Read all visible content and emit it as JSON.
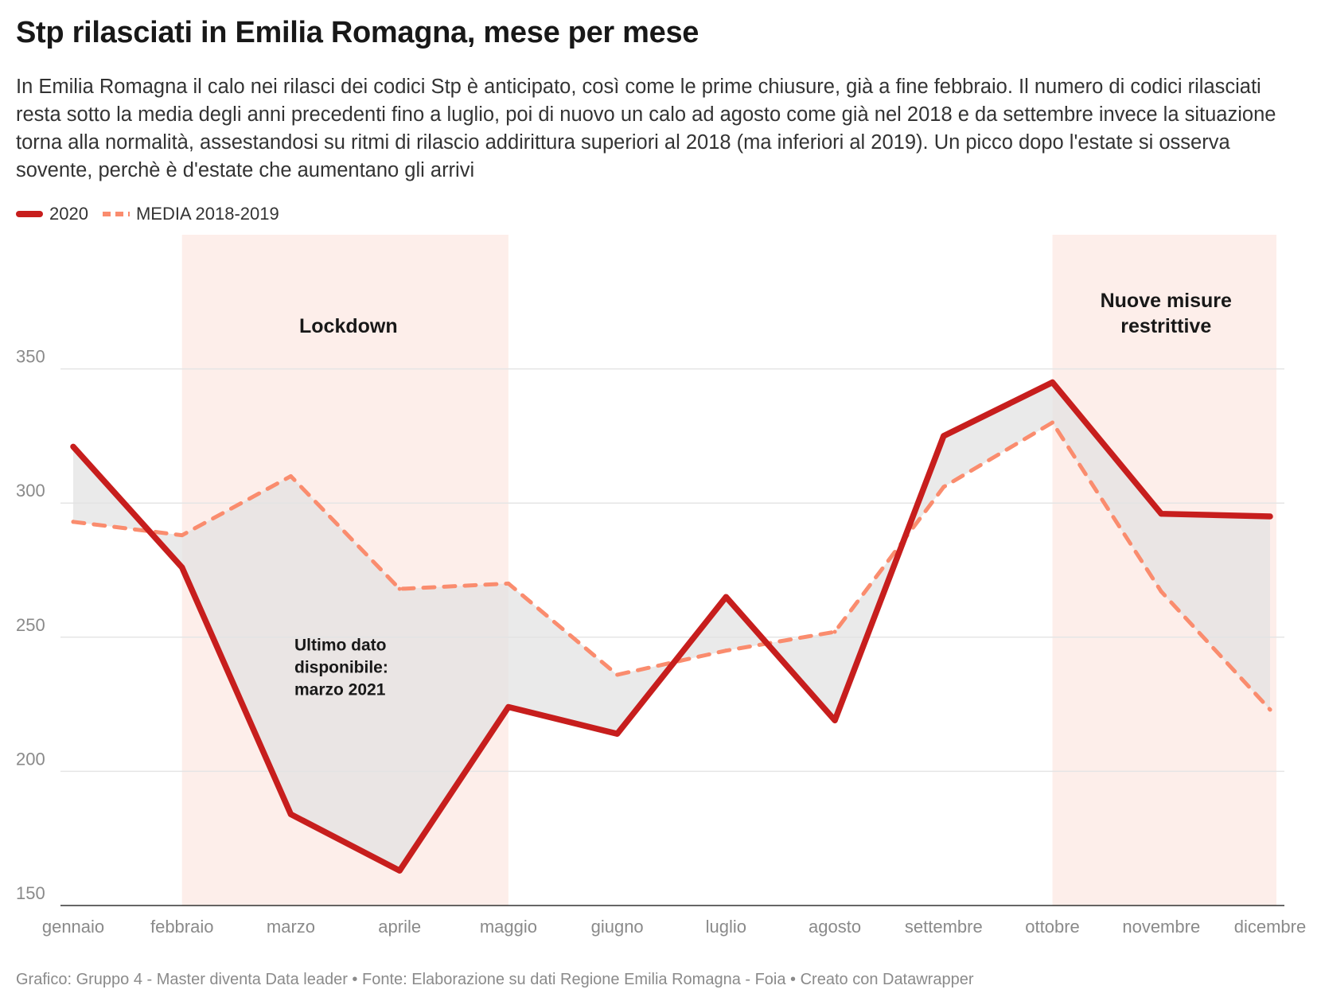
{
  "header": {
    "title": "Stp rilasciati in Emilia Romagna, mese per mese",
    "subtitle": "In Emilia Romagna il calo nei rilasci dei codici Stp è anticipato, così come le prime chiusure, già a fine febbraio. Il numero di codici rilasciati resta sotto la media degli anni precedenti fino a luglio, poi di nuovo un calo ad agosto come già nel 2018 e da settembre invece la situazione torna alla normalità, assestandosi su ritmi di rilascio addirittura superiori al 2018 (ma inferiori al 2019). Un picco dopo l'estate si osserva sovente, perchè è d'estate che aumentano gli arrivi"
  },
  "legend": {
    "series_2020": "2020",
    "series_media": "MEDIA 2018-2019"
  },
  "footer": {
    "credit": "Grafico: Gruppo 4 - Master diventa Data leader • Fonte: Elaborazione su dati Regione Emilia Romagna - Foia • Creato con Datawrapper"
  },
  "colors": {
    "series_2020": "#c71e1d",
    "series_media": "#fa8c6e",
    "range_shade": "#fdeeea",
    "diff_fill": "#e2e2e2",
    "grid": "#e5e5e5",
    "tick_text": "#8a8a8a"
  },
  "chart_data": {
    "type": "line",
    "categories": [
      "gennaio",
      "febbraio",
      "marzo",
      "aprile",
      "maggio",
      "giugno",
      "luglio",
      "agosto",
      "settembre",
      "ottobre",
      "novembre",
      "dicembre"
    ],
    "series": [
      {
        "name": "2020",
        "values": [
          321,
          276,
          184,
          163,
          224,
          214,
          265,
          219,
          325,
          345,
          296,
          295
        ],
        "style": "solid"
      },
      {
        "name": "MEDIA 2018-2019",
        "values": [
          293,
          288,
          310,
          268,
          270,
          236,
          245,
          252,
          306,
          330,
          267,
          223
        ],
        "style": "dashed"
      }
    ],
    "ylim": [
      150,
      400
    ],
    "yticks": [
      150,
      200,
      250,
      300,
      350
    ],
    "grid": true,
    "legend_position": "top-left",
    "area_between_series": true,
    "ranges": [
      {
        "label": "Lockdown",
        "from": 1,
        "to": 4
      },
      {
        "label": "Nuove misure restrittive",
        "from": 9,
        "to": 11
      }
    ],
    "annotations": [
      {
        "text": "Ultimo dato disponibile: marzo 2021",
        "x": 2.04,
        "y": 245
      }
    ]
  }
}
